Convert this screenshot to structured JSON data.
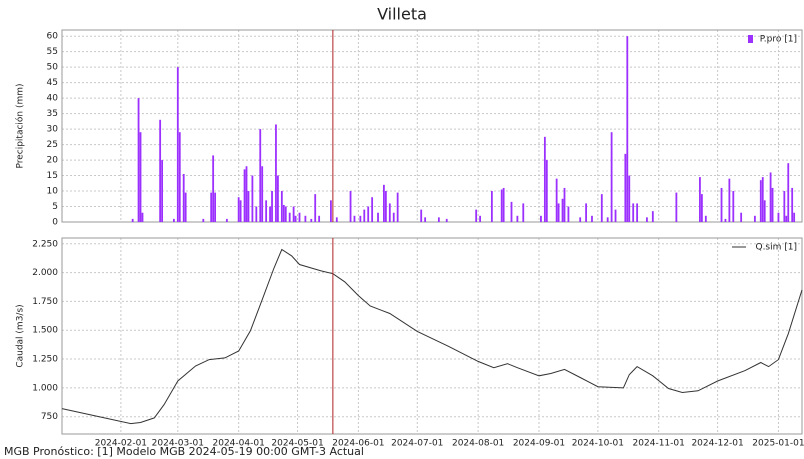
{
  "chart_data": [
    {
      "type": "bar",
      "title": "Villeta",
      "ylabel": "Precipitación (mm)",
      "legend": "upper right",
      "grid": true,
      "xlim": [
        "2024-01-02",
        "2025-01-13"
      ],
      "ylim": [
        0,
        62
      ],
      "yticks": [
        0,
        5,
        10,
        15,
        20,
        25,
        30,
        35,
        40,
        45,
        50,
        55,
        60
      ],
      "vline": "2024-05-19",
      "vline_color": "#b22222",
      "series": [
        {
          "name": "P.pro [1]",
          "color": "#9b30ff",
          "x": [
            "2024-02-07",
            "2024-02-10",
            "2024-02-11",
            "2024-02-12",
            "2024-02-21",
            "2024-02-22",
            "2024-02-28",
            "2024-03-01",
            "2024-03-02",
            "2024-03-04",
            "2024-03-05",
            "2024-03-14",
            "2024-03-18",
            "2024-03-19",
            "2024-03-20",
            "2024-03-26",
            "2024-04-01",
            "2024-04-02",
            "2024-04-04",
            "2024-04-05",
            "2024-04-06",
            "2024-04-08",
            "2024-04-10",
            "2024-04-12",
            "2024-04-13",
            "2024-04-15",
            "2024-04-17",
            "2024-04-18",
            "2024-04-20",
            "2024-04-21",
            "2024-04-23",
            "2024-04-24",
            "2024-04-25",
            "2024-04-27",
            "2024-04-29",
            "2024-04-30",
            "2024-05-02",
            "2024-05-05",
            "2024-05-08",
            "2024-05-10",
            "2024-05-12",
            "2024-05-18",
            "2024-05-21",
            "2024-05-28",
            "2024-05-30",
            "2024-06-02",
            "2024-06-04",
            "2024-06-06",
            "2024-06-08",
            "2024-06-11",
            "2024-06-14",
            "2024-06-15",
            "2024-06-17",
            "2024-06-19",
            "2024-06-21",
            "2024-07-03",
            "2024-07-05",
            "2024-07-12",
            "2024-07-16",
            "2024-07-31",
            "2024-08-02",
            "2024-08-08",
            "2024-08-13",
            "2024-08-14",
            "2024-08-18",
            "2024-08-21",
            "2024-08-24",
            "2024-09-02",
            "2024-09-04",
            "2024-09-05",
            "2024-09-10",
            "2024-09-11",
            "2024-09-13",
            "2024-09-14",
            "2024-09-16",
            "2024-09-22",
            "2024-09-25",
            "2024-09-28",
            "2024-10-03",
            "2024-10-06",
            "2024-10-08",
            "2024-10-10",
            "2024-10-15",
            "2024-10-16",
            "2024-10-17",
            "2024-10-19",
            "2024-10-21",
            "2024-10-26",
            "2024-10-29",
            "2024-11-10",
            "2024-11-22",
            "2024-11-23",
            "2024-11-25",
            "2024-12-03",
            "2024-12-05",
            "2024-12-07",
            "2024-12-09",
            "2024-12-13",
            "2024-12-20",
            "2024-12-23",
            "2024-12-24",
            "2024-12-25",
            "2024-12-28",
            "2024-12-29",
            "2025-01-01",
            "2025-01-04",
            "2025-01-05",
            "2025-01-06",
            "2025-01-08",
            "2025-01-09"
          ],
          "values": [
            1,
            40,
            29,
            3,
            33,
            20,
            1,
            50,
            29,
            15.5,
            9.5,
            1,
            9.5,
            21.5,
            9.5,
            1,
            8,
            7,
            17,
            18,
            10,
            15,
            5,
            30,
            18,
            7,
            5,
            10,
            31.5,
            15,
            10,
            5.5,
            5,
            3,
            5,
            2,
            3,
            2,
            1,
            9,
            2,
            7,
            1.5,
            10,
            2,
            2,
            4,
            5,
            8,
            3,
            12,
            10,
            6,
            3,
            9.5,
            4,
            1.5,
            1.5,
            1,
            4,
            2,
            10,
            10.5,
            11,
            6.5,
            2,
            6,
            2,
            27.5,
            20,
            14,
            6,
            7.5,
            11,
            5,
            1.5,
            6,
            2,
            9,
            1.5,
            29,
            4,
            22,
            60,
            15,
            6,
            6,
            1.5,
            3.5,
            9.5,
            14.5,
            9,
            2,
            11,
            1,
            14,
            10,
            3,
            2,
            13.5,
            14.5,
            7,
            16,
            11,
            3,
            10,
            2,
            19,
            11,
            3
          ]
        }
      ]
    },
    {
      "type": "line",
      "ylabel": "Caudal (m3/s)",
      "legend": "upper right",
      "grid": true,
      "xlim": [
        "2024-01-02",
        "2025-01-13"
      ],
      "ylim": [
        600,
        2300
      ],
      "yticks": [
        {
          "value": 750,
          "label": "750"
        },
        {
          "value": 1000,
          "label": "1.000"
        },
        {
          "value": 1250,
          "label": "1.250"
        },
        {
          "value": 1500,
          "label": "1.500"
        },
        {
          "value": 1750,
          "label": "1.750"
        },
        {
          "value": 2000,
          "label": "2.000"
        },
        {
          "value": 2250,
          "label": "2.250"
        }
      ],
      "xticks": [
        "2024-02-01",
        "2024-03-01",
        "2024-04-01",
        "2024-05-01",
        "2024-06-01",
        "2024-07-01",
        "2024-08-01",
        "2024-09-01",
        "2024-10-01",
        "2024-11-01",
        "2024-12-01",
        "2025-01-01"
      ],
      "vline": "2024-05-19",
      "vline_color": "#b22222",
      "series": [
        {
          "name": "Q.sim [1]",
          "color": "#333333",
          "x": [
            "2024-01-02",
            "2024-01-21",
            "2024-02-06",
            "2024-02-11",
            "2024-02-18",
            "2024-02-23",
            "2024-03-01",
            "2024-03-10",
            "2024-03-17",
            "2024-03-25",
            "2024-04-01",
            "2024-04-07",
            "2024-04-13",
            "2024-04-19",
            "2024-04-23",
            "2024-04-28",
            "2024-05-02",
            "2024-05-08",
            "2024-05-13",
            "2024-05-19",
            "2024-05-25",
            "2024-06-01",
            "2024-06-07",
            "2024-06-17",
            "2024-07-01",
            "2024-07-17",
            "2024-08-01",
            "2024-08-09",
            "2024-08-16",
            "2024-08-21",
            "2024-09-01",
            "2024-09-07",
            "2024-09-14",
            "2024-09-22",
            "2024-10-01",
            "2024-10-14",
            "2024-10-17",
            "2024-10-21",
            "2024-10-29",
            "2024-11-06",
            "2024-11-13",
            "2024-11-21",
            "2024-12-01",
            "2024-12-15",
            "2024-12-23",
            "2024-12-27",
            "2025-01-01",
            "2025-01-06",
            "2025-01-13"
          ],
          "values": [
            820,
            750,
            690,
            700,
            740,
            855,
            1060,
            1190,
            1245,
            1260,
            1320,
            1495,
            1765,
            2040,
            2200,
            2145,
            2070,
            2040,
            2015,
            1990,
            1920,
            1800,
            1710,
            1645,
            1490,
            1360,
            1230,
            1175,
            1210,
            1175,
            1105,
            1125,
            1160,
            1090,
            1010,
            1000,
            1115,
            1185,
            1105,
            995,
            960,
            975,
            1060,
            1150,
            1220,
            1185,
            1245,
            1470,
            1850
          ]
        }
      ]
    }
  ],
  "footer": "MGB Pronóstico: [1] Modelo MGB 2024-05-19 00:00 GMT-3 Actual"
}
